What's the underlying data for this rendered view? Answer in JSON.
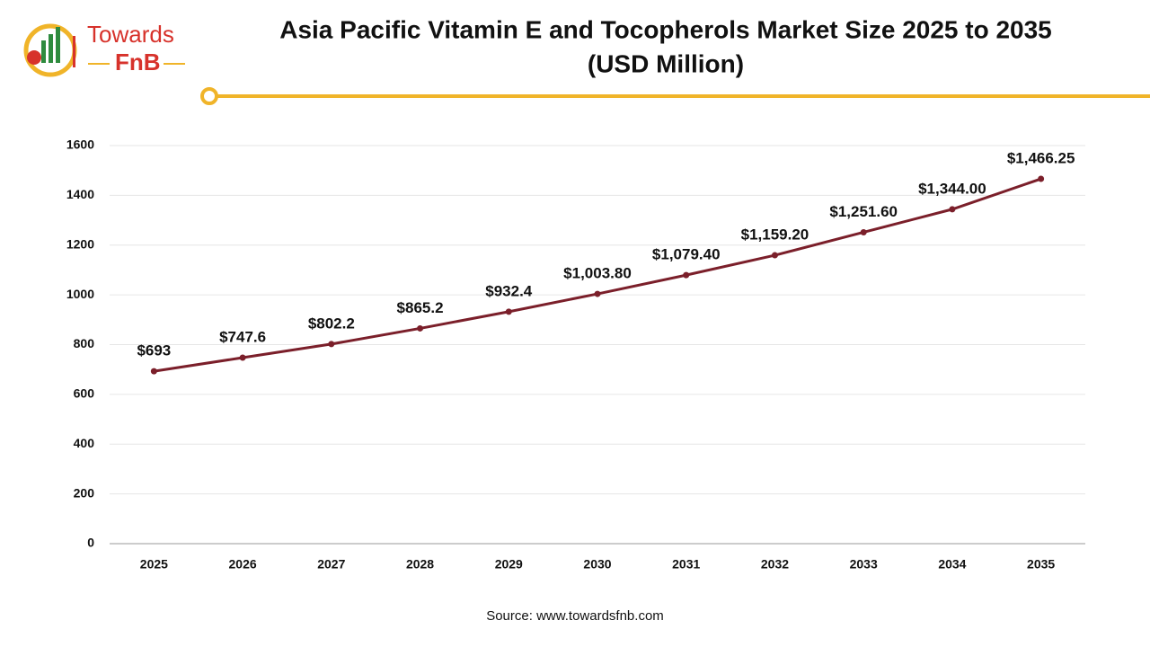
{
  "logo": {
    "top": "Towards",
    "bottom": "FnB"
  },
  "chart_data": {
    "type": "line",
    "title": "Asia Pacific Vitamin E and Tocopherols Market Size 2025 to 2035",
    "subtitle": "(USD Million)",
    "categories": [
      "2025",
      "2026",
      "2027",
      "2028",
      "2029",
      "2030",
      "2031",
      "2032",
      "2033",
      "2034",
      "2035"
    ],
    "values": [
      693,
      747.6,
      802.2,
      865.2,
      932.4,
      1003.8,
      1079.4,
      1159.2,
      1251.6,
      1344.0,
      1466.25
    ],
    "value_labels": [
      "$693",
      "$747.6",
      "$802.2",
      "$865.2",
      "$932.4",
      "$1,003.80",
      "$1,079.40",
      "$1,159.20",
      "$1,251.60",
      "$1,344.00",
      "$1,466.25"
    ],
    "color": "#7b1f2a",
    "ylim": [
      0,
      1600
    ],
    "yticks": [
      0,
      200,
      400,
      600,
      800,
      1000,
      1200,
      1400,
      1600
    ],
    "grid": true,
    "source": "Source: www.towardsfnb.com"
  }
}
